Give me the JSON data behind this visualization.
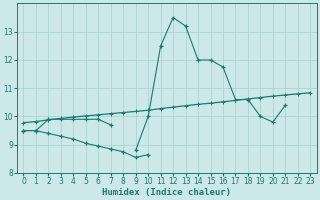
{
  "x_full": [
    0,
    1,
    2,
    3,
    4,
    5,
    6,
    7,
    8,
    9,
    10,
    11,
    12,
    13,
    14,
    15,
    16,
    17,
    18,
    19,
    20,
    21,
    22,
    23
  ],
  "line_main": [
    9.5,
    9.5,
    9.9,
    9.9,
    9.9,
    9.9,
    9.9,
    9.7,
    null,
    8.8,
    10.0,
    12.5,
    13.5,
    13.2,
    12.0,
    12.0,
    11.75,
    10.6,
    10.6,
    10.0,
    9.8,
    10.4,
    null,
    null
  ],
  "line_low": [
    9.5,
    9.5,
    9.4,
    9.3,
    9.2,
    9.05,
    8.95,
    8.85,
    8.75,
    8.55,
    8.65,
    null,
    null,
    null,
    null,
    null,
    null,
    null,
    null,
    null,
    null,
    null,
    null,
    null
  ],
  "line_trend": [
    9.78,
    9.82,
    9.88,
    9.93,
    9.98,
    10.02,
    10.06,
    10.1,
    10.14,
    10.18,
    10.22,
    10.28,
    10.33,
    10.38,
    10.43,
    10.47,
    10.52,
    10.57,
    10.62,
    10.67,
    10.72,
    10.76,
    10.8,
    10.84
  ],
  "background_color": "#cce8e8",
  "line_color": "#1a7a6e",
  "grid_color": "#aacece",
  "xlabel": "Humidex (Indice chaleur)",
  "ylim": [
    8,
    14
  ],
  "xlim": [
    -0.5,
    23.5
  ],
  "yticks": [
    8,
    9,
    10,
    11,
    12,
    13
  ],
  "xticks": [
    0,
    1,
    2,
    3,
    4,
    5,
    6,
    7,
    8,
    9,
    10,
    11,
    12,
    13,
    14,
    15,
    16,
    17,
    18,
    19,
    20,
    21,
    22,
    23
  ],
  "figsize": [
    3.2,
    2.0
  ],
  "dpi": 100
}
